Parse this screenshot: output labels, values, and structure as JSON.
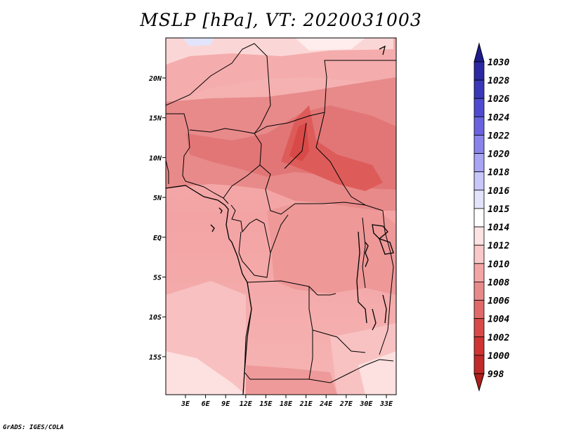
{
  "title": "MSLP [hPa], VT: 2020031003",
  "credit": "GrADS: IGES/COLA",
  "lat_labels": [
    "20N",
    "15N",
    "10N",
    "5N",
    "EQ",
    "5S",
    "10S",
    "15S"
  ],
  "lon_labels": [
    "3E",
    "6E",
    "9E",
    "12E",
    "15E",
    "18E",
    "21E",
    "24E",
    "27E",
    "30E",
    "33E"
  ],
  "colorbar": {
    "labels": [
      "1030",
      "1028",
      "1026",
      "1024",
      "1022",
      "1020",
      "1018",
      "1016",
      "1015",
      "1014",
      "1012",
      "1010",
      "1008",
      "1006",
      "1004",
      "1002",
      "1000",
      "998"
    ],
    "colors": [
      "#1e1b8c",
      "#2b28a3",
      "#3a37b8",
      "#4f4bd0",
      "#6a63e0",
      "#8a83ec",
      "#a9a4f4",
      "#c9c6f9",
      "#e4e3fc",
      "#ffffff",
      "#fde3e3",
      "#f9c8c8",
      "#f4a6a6",
      "#e98a8a",
      "#e06a6a",
      "#d84a48",
      "#cf3432",
      "#c02a28",
      "#b01e1c"
    ]
  },
  "colors": {
    "background": "#ffffff",
    "border": "#000000"
  }
}
